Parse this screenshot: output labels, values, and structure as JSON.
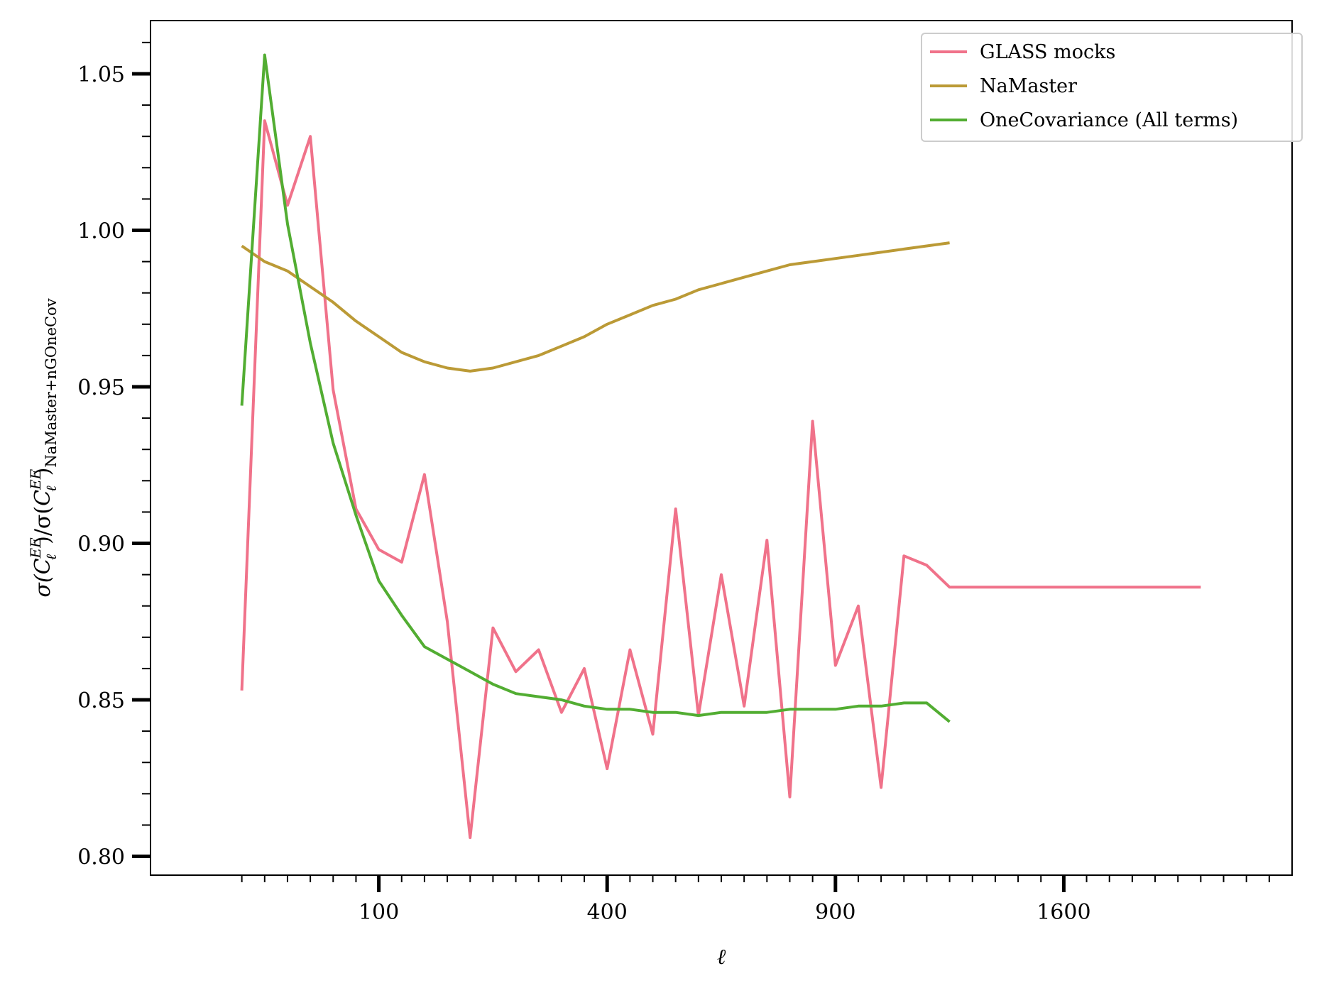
{
  "chart_data": {
    "type": "line",
    "title": "",
    "xlabel": "ℓ",
    "ylabel_parts": {
      "sigma1": "σ(",
      "c1": "C",
      "sup1": "EE",
      "sub1": "ℓ",
      "mid": ")/σ(",
      "c2": "C",
      "sup2": "EE",
      "sub2": "ℓ",
      "close": ")",
      "subscript": "NaMaster+nGOneCov"
    },
    "x_scale": "sqrt",
    "xlim": [
      0,
      2500
    ],
    "ylim": [
      0.794,
      1.067
    ],
    "xticks_major": [
      100,
      400,
      900,
      1600
    ],
    "xtick_labels": [
      "100",
      "400",
      "900",
      "1600"
    ],
    "xticks_minor_sqrt": [
      4,
      5,
      6,
      7,
      8,
      9,
      11,
      12,
      13,
      14,
      15,
      16,
      17,
      18,
      19,
      21,
      22,
      23,
      24,
      25,
      26,
      27,
      28,
      29,
      31,
      32,
      33,
      34,
      35,
      36,
      37,
      38,
      39,
      41,
      42,
      43,
      44,
      45,
      46,
      47,
      48,
      49
    ],
    "yticks_major": [
      0.8,
      0.85,
      0.9,
      0.95,
      1.0,
      1.05
    ],
    "ytick_labels": [
      "0.80",
      "0.85",
      "0.90",
      "0.95",
      "1.00",
      "1.05"
    ],
    "yticks_minor": [
      0.81,
      0.82,
      0.83,
      0.84,
      0.86,
      0.87,
      0.88,
      0.89,
      0.91,
      0.92,
      0.93,
      0.94,
      0.96,
      0.97,
      0.98,
      0.99,
      1.01,
      1.02,
      1.03,
      1.04,
      1.06
    ],
    "legend_position": "top-right",
    "grid": false,
    "x": [
      36,
      64,
      100,
      144,
      196,
      256,
      324,
      400,
      484,
      576,
      676,
      784,
      900,
      1024,
      1156,
      1296,
      1444,
      1600,
      1764,
      1936,
      2116,
      2304,
      2500
    ],
    "series": [
      {
        "name": "GLASS mocks",
        "color": "#f0728a",
        "x": [
          4,
          5,
          6,
          7,
          8,
          9,
          10,
          11,
          12,
          13,
          14,
          15,
          16,
          17,
          18,
          19,
          20,
          21,
          22,
          23,
          24,
          25,
          26,
          27,
          28,
          29,
          30,
          31,
          32,
          33,
          34,
          35,
          36,
          37,
          38,
          39,
          40,
          41,
          42,
          43,
          44,
          45,
          46
        ],
        "values": [
          0.853,
          1.035,
          1.008,
          1.03,
          0.949,
          0.911,
          0.898,
          0.894,
          0.922,
          0.875,
          0.806,
          0.873,
          0.859,
          0.866,
          0.846,
          0.86,
          0.828,
          0.866,
          0.839,
          0.911,
          0.845,
          0.89,
          0.848,
          0.901,
          0.819,
          0.939,
          0.861,
          0.88,
          0.822,
          0.896,
          0.893,
          0.886,
          0.886,
          0.886,
          0.886,
          0.886,
          0.886,
          0.886,
          0.886,
          0.886,
          0.886,
          0.886,
          0.886
        ]
      },
      {
        "name": "NaMaster",
        "color": "#bb9a36",
        "x": [
          4,
          5,
          6,
          7,
          8,
          9,
          10,
          11,
          12,
          13,
          14,
          15,
          16,
          17,
          18,
          19,
          20,
          21,
          22,
          23,
          24,
          25,
          26,
          27,
          28,
          29,
          30,
          31,
          32,
          33,
          34,
          35
        ],
        "values": [
          0.995,
          0.99,
          0.987,
          0.982,
          0.977,
          0.971,
          0.966,
          0.961,
          0.958,
          0.956,
          0.955,
          0.956,
          0.958,
          0.96,
          0.963,
          0.966,
          0.97,
          0.973,
          0.976,
          0.978,
          0.981,
          0.983,
          0.985,
          0.987,
          0.989,
          0.99,
          0.991,
          0.992,
          0.993,
          0.994,
          0.995,
          0.996
        ]
      },
      {
        "name": "OneCovariance (All terms)",
        "color": "#52ad32",
        "x": [
          4,
          5,
          6,
          7,
          8,
          9,
          10,
          11,
          12,
          13,
          14,
          15,
          16,
          17,
          18,
          19,
          20,
          21,
          22,
          23,
          24,
          25,
          26,
          27,
          28,
          29,
          30,
          31,
          32,
          33,
          34,
          35
        ],
        "values": [
          0.944,
          1.056,
          1.002,
          0.964,
          0.932,
          0.909,
          0.888,
          0.877,
          0.867,
          0.863,
          0.859,
          0.855,
          0.852,
          0.851,
          0.85,
          0.848,
          0.847,
          0.847,
          0.846,
          0.846,
          0.845,
          0.846,
          0.846,
          0.846,
          0.847,
          0.847,
          0.847,
          0.848,
          0.848,
          0.849,
          0.849,
          0.843
        ]
      }
    ]
  }
}
